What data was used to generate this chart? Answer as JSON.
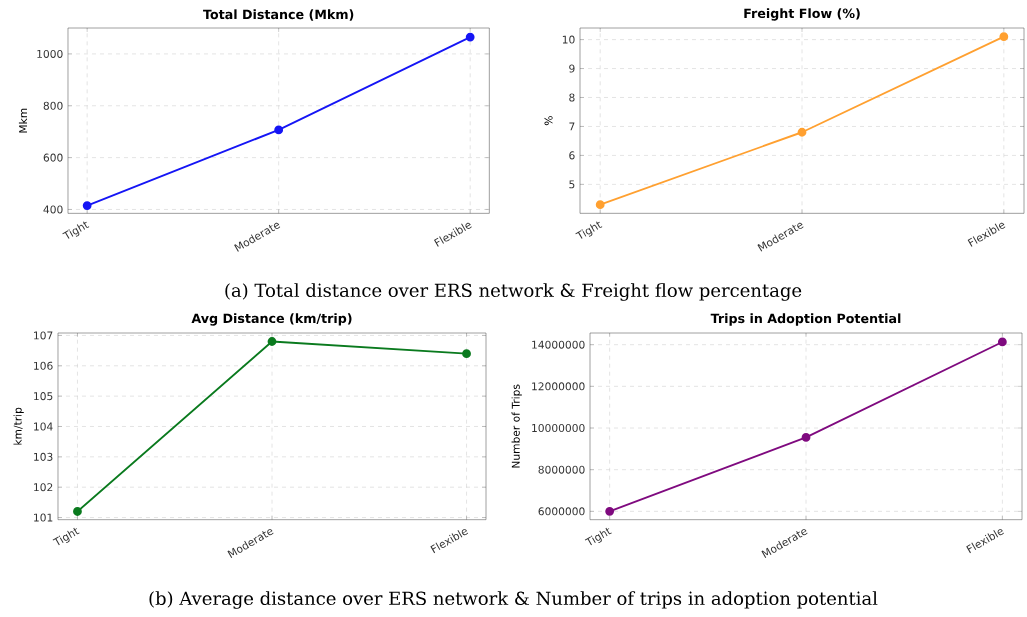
{
  "chart_data": [
    {
      "type": "line",
      "title": "Total Distance (Mkm)",
      "ylabel": "Mkm",
      "categories": [
        "Tight",
        "Moderate",
        "Flexible"
      ],
      "series": [
        {
          "color": "#1515f5",
          "values": [
            415,
            707,
            1065
          ]
        }
      ],
      "ylim": [
        385,
        1100
      ],
      "yticks": [
        400,
        600,
        800,
        1000
      ],
      "grid": true,
      "marker": "circle",
      "annotations": [
        "(a) Total distance over ERS network & Freight flow percentage"
      ]
    },
    {
      "type": "line",
      "title": "Freight Flow (%)",
      "ylabel": "%",
      "categories": [
        "Tight",
        "Moderate",
        "Flexible"
      ],
      "series": [
        {
          "color": "#ffa030",
          "values": [
            4.3,
            6.8,
            10.1
          ]
        }
      ],
      "ylim": [
        4.0,
        10.4
      ],
      "yticks": [
        5,
        6,
        7,
        8,
        9,
        10
      ],
      "grid": true,
      "marker": "circle"
    },
    {
      "type": "line",
      "title": "Avg Distance (km/trip)",
      "ylabel": "km/trip",
      "categories": [
        "Tight",
        "Moderate",
        "Flexible"
      ],
      "series": [
        {
          "color": "#0a7a1e",
          "values": [
            101.2,
            106.8,
            106.4
          ]
        }
      ],
      "ylim": [
        100.93,
        107.08
      ],
      "yticks": [
        101,
        102,
        103,
        104,
        105,
        106,
        107
      ],
      "grid": true,
      "marker": "circle",
      "annotations": [
        "(b) Average distance over ERS network & Number of trips in adoption potential"
      ]
    },
    {
      "type": "line",
      "title": "Trips in Adoption Potential",
      "ylabel": "Number of Trips",
      "categories": [
        "Tight",
        "Moderate",
        "Flexible"
      ],
      "series": [
        {
          "color": "#7f0a7f",
          "values": [
            6000000,
            9550000,
            14130000
          ]
        }
      ],
      "ylim": [
        5600000,
        14560000
      ],
      "yticks": [
        6000000,
        8000000,
        10000000,
        12000000,
        14000000
      ],
      "grid": true,
      "marker": "circle"
    }
  ]
}
